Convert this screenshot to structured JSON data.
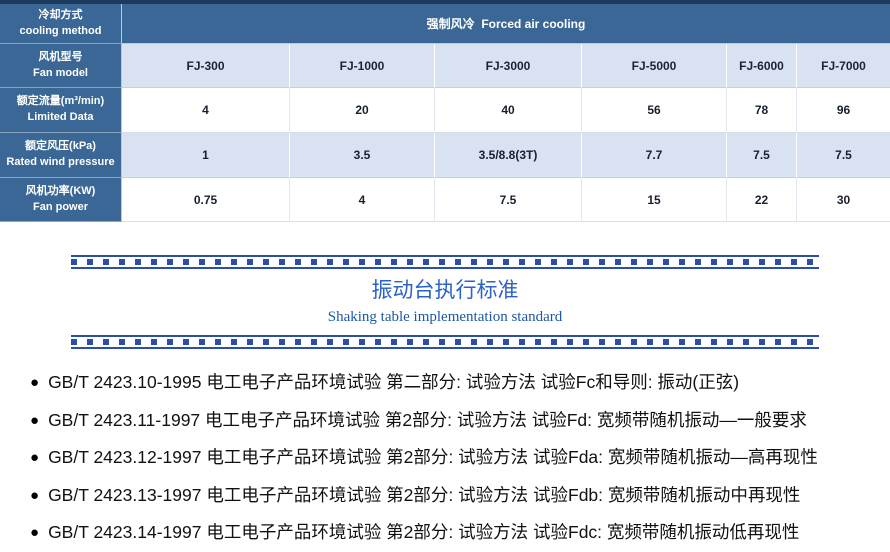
{
  "table": {
    "rows": [
      {
        "label_cn": "冷却方式",
        "label_en": "cooling method",
        "span_value": "强制风冷  Forced air cooling"
      },
      {
        "label_cn": "风机型号",
        "label_en": "Fan model",
        "values": [
          "FJ-300",
          "FJ-1000",
          "FJ-3000",
          "FJ-5000",
          "FJ-6000",
          "FJ-7000"
        ]
      },
      {
        "label_cn": "额定流量(m³/min)",
        "label_en": "Limited Data",
        "values": [
          "4",
          "20",
          "40",
          "56",
          "78",
          "96"
        ]
      },
      {
        "label_cn": "额定风压(kPa)",
        "label_en": "Rated wind pressure",
        "values": [
          "1",
          "3.5",
          "3.5/8.8(3T)",
          "7.7",
          "7.5",
          "7.5"
        ]
      },
      {
        "label_cn": "风机功率(KW)",
        "label_en": "Fan power",
        "values": [
          "0.75",
          "4",
          "7.5",
          "15",
          "22",
          "30"
        ]
      }
    ]
  },
  "section": {
    "title": "振动台执行标准",
    "subtitle": "Shaking table implementation standard"
  },
  "standards": [
    "GB/T 2423.10-1995 电工电子产品环境试验 第二部分: 试验方法 试验Fc和导则: 振动(正弦)",
    "GB/T 2423.11-1997 电工电子产品环境试验 第2部分: 试验方法 试验Fd: 宽频带随机振动—一般要求",
    "GB/T 2423.12-1997 电工电子产品环境试验 第2部分: 试验方法 试验Fda: 宽频带随机振动—高再现性",
    "GB/T 2423.13-1997 电工电子产品环境试验 第2部分: 试验方法 试验Fdb: 宽频带随机振动中再现性",
    "GB/T 2423.14-1997 电工电子产品环境试验 第2部分: 试验方法 试验Fdc: 宽频带随机振动低再现性"
  ],
  "icons": {
    "bullet": "●"
  },
  "colors": {
    "header_blue": "#3a6795",
    "dark_navy": "#1b3a5c",
    "light_row": "#d9e2f0",
    "title_blue": "#2b62c8",
    "subtitle_blue": "#1d57a8",
    "divider_blue": "#2b4fa3"
  }
}
